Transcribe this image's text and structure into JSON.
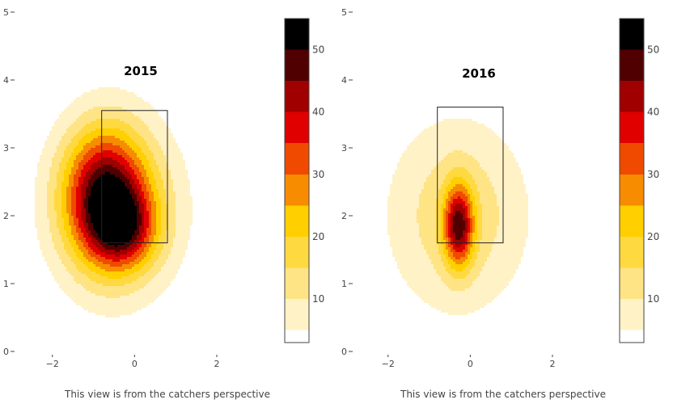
{
  "chart_data": [
    {
      "type": "heatmap",
      "title": "2015",
      "caption": "This view is from the catchers perspective",
      "xlim": [
        -2.9,
        3.3
      ],
      "ylim": [
        0,
        5
      ],
      "x_ticks": [
        -2,
        0,
        2
      ],
      "x_tick_labels": [
        "−2",
        "0",
        "2"
      ],
      "y_ticks": [
        0,
        1,
        2,
        3,
        4,
        5
      ],
      "y_tick_labels": [
        "0",
        "1",
        "2",
        "3",
        "4",
        "5"
      ],
      "strike_zone": {
        "x": [
          -0.8,
          0.8
        ],
        "y": [
          1.6,
          3.55
        ]
      },
      "colorbar": {
        "range": [
          3,
          55
        ],
        "ticks": [
          10,
          20,
          30,
          40,
          50
        ],
        "tick_labels": [
          "10",
          "20",
          "30",
          "40",
          "50"
        ]
      },
      "density_levels": [
        {
          "min": 5,
          "color": "#fff2c6"
        },
        {
          "min": 10,
          "color": "#ffe485"
        },
        {
          "min": 15,
          "color": "#ffd940"
        },
        {
          "min": 20,
          "color": "#ffcf00"
        },
        {
          "min": 25,
          "color": "#f78c00"
        },
        {
          "min": 30,
          "color": "#ef4a00"
        },
        {
          "min": 35,
          "color": "#e00000"
        },
        {
          "min": 40,
          "color": "#a00000"
        },
        {
          "min": 45,
          "color": "#500000"
        },
        {
          "min": 50,
          "color": "#000000"
        }
      ],
      "density_peaks": [
        {
          "x": -0.72,
          "y": 2.3,
          "sx": 0.7,
          "sy": 0.68,
          "amp": 40
        },
        {
          "x": -0.25,
          "y": 1.8,
          "sx": 0.55,
          "sy": 0.4,
          "amp": 22
        },
        {
          "x": -0.4,
          "y": 2.1,
          "sx": 1.15,
          "sy": 0.95,
          "amp": 15
        }
      ]
    },
    {
      "type": "heatmap",
      "title": "2016",
      "caption": "This view is from the catchers perspective",
      "xlim": [
        -2.9,
        3.3
      ],
      "ylim": [
        0,
        5
      ],
      "x_ticks": [
        -2,
        0,
        2
      ],
      "x_tick_labels": [
        "−2",
        "0",
        "2"
      ],
      "y_ticks": [
        0,
        1,
        2,
        3,
        4,
        5
      ],
      "y_tick_labels": [
        "0",
        "1",
        "2",
        "3",
        "4",
        "5"
      ],
      "strike_zone": {
        "x": [
          -0.8,
          0.8
        ],
        "y": [
          1.6,
          3.6
        ]
      },
      "colorbar": {
        "range": [
          3,
          55
        ],
        "ticks": [
          10,
          20,
          30,
          40,
          50
        ],
        "tick_labels": [
          "10",
          "20",
          "30",
          "40",
          "50"
        ]
      },
      "density_levels": [
        {
          "min": 5,
          "color": "#fff2c6"
        },
        {
          "min": 10,
          "color": "#ffe485"
        },
        {
          "min": 15,
          "color": "#ffd940"
        },
        {
          "min": 20,
          "color": "#ffcf00"
        },
        {
          "min": 25,
          "color": "#f78c00"
        },
        {
          "min": 30,
          "color": "#ef4a00"
        },
        {
          "min": 35,
          "color": "#e00000"
        },
        {
          "min": 40,
          "color": "#a00000"
        },
        {
          "min": 45,
          "color": "#500000"
        },
        {
          "min": 50,
          "color": "#000000"
        }
      ],
      "density_peaks": [
        {
          "x": -0.28,
          "y": 1.85,
          "sx": 0.25,
          "sy": 0.42,
          "amp": 36
        },
        {
          "x": -0.3,
          "y": 2.0,
          "sx": 1.2,
          "sy": 1.0,
          "amp": 14
        }
      ]
    }
  ]
}
